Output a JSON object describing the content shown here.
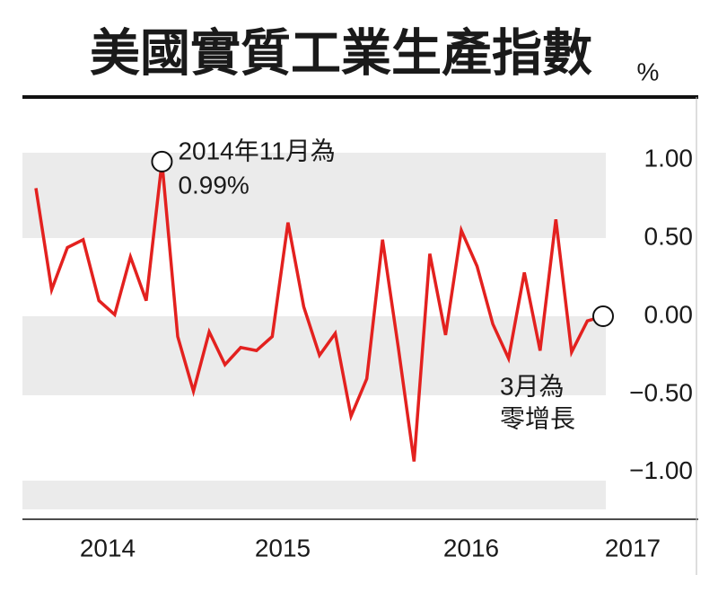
{
  "chart_data": {
    "type": "line",
    "title": "美國實質工業生產指數",
    "unit": "%",
    "year_labels": [
      "2014",
      "2015",
      "2016",
      "2017"
    ],
    "series": [
      {
        "name": "美國實質工業生產指數",
        "color": "#e3211f",
        "values": [
          0.82,
          0.17,
          0.44,
          0.49,
          0.1,
          0.01,
          0.38,
          0.1,
          0.99,
          -0.13,
          -0.48,
          -0.1,
          -0.31,
          -0.2,
          -0.22,
          -0.13,
          0.6,
          0.06,
          -0.25,
          -0.11,
          -0.64,
          -0.4,
          0.49,
          -0.2,
          -0.93,
          0.4,
          -0.12,
          0.55,
          0.32,
          -0.05,
          -0.27,
          0.28,
          -0.22,
          0.62,
          -0.23,
          -0.03,
          0.0
        ]
      }
    ],
    "ylim": [
      -1.3,
      1.3
    ],
    "yticks": [
      {
        "value": 1,
        "label": "1.00"
      },
      {
        "value": 0.5,
        "label": "0.50"
      },
      {
        "value": 0,
        "label": "0.00"
      },
      {
        "value": -0.5,
        "label": "−0.50"
      },
      {
        "value": -1,
        "label": "−1.00"
      }
    ],
    "annotations": [
      {
        "lines": [
          "2014年11月為",
          "0.99%"
        ],
        "index": 8
      },
      {
        "lines": [
          "3月為",
          "零增長"
        ],
        "index": 36
      }
    ]
  }
}
